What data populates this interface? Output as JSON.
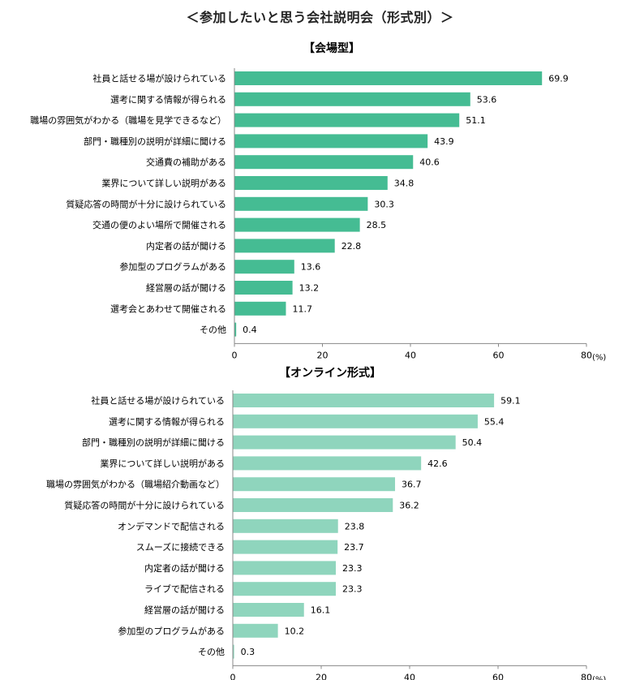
{
  "page_title": "＜参加したいと思う会社説明会（形式別）＞",
  "colors": {
    "venue_bar": "#45bc93",
    "online_bar": "#8fd5bd",
    "axis": "#888888"
  },
  "chart_data": [
    {
      "type": "bar",
      "orientation": "horizontal",
      "title": "【会場型】",
      "unit": "(%)",
      "xlim": [
        0,
        80
      ],
      "ticks": [
        0,
        20,
        40,
        60,
        80
      ],
      "categories": [
        "社員と話せる場が設けられている",
        "選考に関する情報が得られる",
        "職場の雰囲気がわかる（職場を見学できるなど）",
        "部門・職種別の説明が詳細に聞ける",
        "交通費の補助がある",
        "業界について詳しい説明がある",
        "質疑応答の時間が十分に設けられている",
        "交通の便のよい場所で開催される",
        "内定者の話が聞ける",
        "参加型のプログラムがある",
        "経営層の話が聞ける",
        "選考会とあわせて開催される",
        "その他"
      ],
      "values": [
        69.9,
        53.6,
        51.1,
        43.9,
        40.6,
        34.8,
        30.3,
        28.5,
        22.8,
        13.6,
        13.2,
        11.7,
        0.4
      ],
      "value_labels": [
        "69.9",
        "53.6",
        "51.1",
        "43.9",
        "40.6",
        "34.8",
        "30.3",
        "28.5",
        "22.8",
        "13.6",
        "13.2",
        "11.7",
        "0.4"
      ]
    },
    {
      "type": "bar",
      "orientation": "horizontal",
      "title": "【オンライン形式】",
      "unit": "(%)",
      "xlim": [
        0,
        80
      ],
      "ticks": [
        0,
        20,
        40,
        60,
        80
      ],
      "categories": [
        "社員と話せる場が設けられている",
        "選考に関する情報が得られる",
        "部門・職種別の説明が詳細に聞ける",
        "業界について詳しい説明がある",
        "職場の雰囲気がわかる（職場紹介動画など）",
        "質疑応答の時間が十分に設けられている",
        "オンデマンドで配信される",
        "スムーズに接続できる",
        "内定者の話が聞ける",
        "ライブで配信される",
        "経営層の話が聞ける",
        "参加型のプログラムがある",
        "その他"
      ],
      "values": [
        59.1,
        55.4,
        50.4,
        42.6,
        36.7,
        36.2,
        23.8,
        23.7,
        23.3,
        23.3,
        16.1,
        10.2,
        0.3
      ],
      "value_labels": [
        "59.1",
        "55.4",
        "50.4",
        "42.6",
        "36.7",
        "36.2",
        "23.8",
        "23.7",
        "23.3",
        "23.3",
        "16.1",
        "10.2",
        "0.3"
      ]
    }
  ]
}
